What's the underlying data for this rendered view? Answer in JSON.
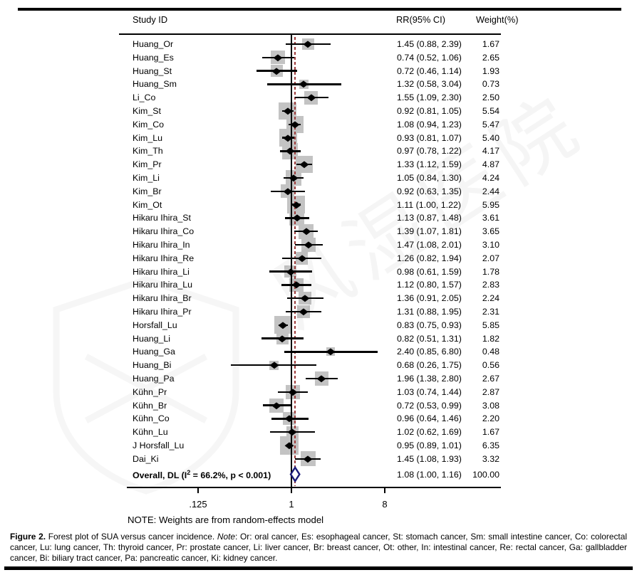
{
  "figure": {
    "header": {
      "study_id": "Study ID",
      "rr_ci": "RR(95% CI)",
      "weight": "Weight(%)"
    },
    "note": "NOTE: Weights are from random-effects model",
    "overall": {
      "label_prefix": "Overall, DL (I",
      "label_sup": "2",
      "label_suffix": " = 66.2%, p < 0.001)"
    },
    "caption": {
      "figure_label": "Figure 2.",
      "text1": " Forest plot of SUA versus cancer incidence. ",
      "note_label": "Note",
      "text2": ": Or: oral cancer, Es: esophageal cancer, St: stomach cancer, Sm: small intestine cancer, Co: colorectal cancer, Lu: lung cancer, Th: thyroid cancer, Pr: prostate cancer, Li: liver cancer, Br: breast cancer, Ot: other, In: intestinal cancer, Re: rectal cancer, Ga: gallbladder cancer, Bi: biliary tract cancer, Pa: pancreatic cancer, Ki: kidney cancer."
    },
    "watermark_text": "风湿医院",
    "colors": {
      "square": "#c3c3c3",
      "marker": "#000000",
      "ref_line": "#000000",
      "overall_dashed_line": "#9d3a3a",
      "diamond_outline": "#1b1b7a"
    }
  },
  "chart_data": {
    "type": "forest",
    "effect_measure": "RR",
    "x_axis": {
      "scale": "log",
      "ticks": [
        0.125,
        1,
        8
      ],
      "tick_labels": [
        ".125",
        "1",
        "8"
      ]
    },
    "ref_line": 1,
    "overall_dashed_line": 1.08,
    "studies": [
      {
        "id": "Huang_Or",
        "rr": 1.45,
        "lo": 0.88,
        "hi": 2.39,
        "weight": 1.67
      },
      {
        "id": "Huang_Es",
        "rr": 0.74,
        "lo": 0.52,
        "hi": 1.06,
        "weight": 2.65
      },
      {
        "id": "Huang_St",
        "rr": 0.72,
        "lo": 0.46,
        "hi": 1.14,
        "weight": 1.93
      },
      {
        "id": "Huang_Sm",
        "rr": 1.32,
        "lo": 0.58,
        "hi": 3.04,
        "weight": 0.73
      },
      {
        "id": "Li_Co",
        "rr": 1.55,
        "lo": 1.09,
        "hi": 2.3,
        "weight": 2.5
      },
      {
        "id": "Kim_St",
        "rr": 0.92,
        "lo": 0.81,
        "hi": 1.05,
        "weight": 5.54
      },
      {
        "id": "Kim_Co",
        "rr": 1.08,
        "lo": 0.94,
        "hi": 1.23,
        "weight": 5.47
      },
      {
        "id": "Kim_Lu",
        "rr": 0.93,
        "lo": 0.81,
        "hi": 1.07,
        "weight": 5.4
      },
      {
        "id": "Kim_Th",
        "rr": 0.97,
        "lo": 0.78,
        "hi": 1.22,
        "weight": 4.17
      },
      {
        "id": "Kim_Pr",
        "rr": 1.33,
        "lo": 1.12,
        "hi": 1.59,
        "weight": 4.87
      },
      {
        "id": "Kim_Li",
        "rr": 1.05,
        "lo": 0.84,
        "hi": 1.3,
        "weight": 4.24
      },
      {
        "id": "Kim_Br",
        "rr": 0.92,
        "lo": 0.63,
        "hi": 1.35,
        "weight": 2.44
      },
      {
        "id": "Kim_Ot",
        "rr": 1.11,
        "lo": 1.0,
        "hi": 1.22,
        "weight": 5.95
      },
      {
        "id": "Hikaru Ihira_St",
        "rr": 1.13,
        "lo": 0.87,
        "hi": 1.48,
        "weight": 3.61
      },
      {
        "id": "Hikaru Ihira_Co",
        "rr": 1.39,
        "lo": 1.07,
        "hi": 1.81,
        "weight": 3.65
      },
      {
        "id": "Hikaru Ihira_In",
        "rr": 1.47,
        "lo": 1.08,
        "hi": 2.01,
        "weight": 3.1
      },
      {
        "id": "Hikaru Ihira_Re",
        "rr": 1.26,
        "lo": 0.82,
        "hi": 1.94,
        "weight": 2.07
      },
      {
        "id": "Hikaru Ihira_Li",
        "rr": 0.98,
        "lo": 0.61,
        "hi": 1.59,
        "weight": 1.78
      },
      {
        "id": "Hikaru Ihira_Lu",
        "rr": 1.12,
        "lo": 0.8,
        "hi": 1.57,
        "weight": 2.83
      },
      {
        "id": "Hikaru Ihira_Br",
        "rr": 1.36,
        "lo": 0.91,
        "hi": 2.05,
        "weight": 2.24
      },
      {
        "id": "Hikaru Ihira_Pr",
        "rr": 1.31,
        "lo": 0.88,
        "hi": 1.95,
        "weight": 2.31
      },
      {
        "id": "Horsfall_Lu",
        "rr": 0.83,
        "lo": 0.75,
        "hi": 0.93,
        "weight": 5.85
      },
      {
        "id": "Huang_Li",
        "rr": 0.82,
        "lo": 0.51,
        "hi": 1.31,
        "weight": 1.82
      },
      {
        "id": "Huang_Ga",
        "rr": 2.4,
        "lo": 0.85,
        "hi": 6.8,
        "weight": 0.48
      },
      {
        "id": "Huang_Bi",
        "rr": 0.68,
        "lo": 0.26,
        "hi": 1.75,
        "weight": 0.56
      },
      {
        "id": "Huang_Pa",
        "rr": 1.96,
        "lo": 1.38,
        "hi": 2.8,
        "weight": 2.67
      },
      {
        "id": "Kühn_Pr",
        "rr": 1.03,
        "lo": 0.74,
        "hi": 1.44,
        "weight": 2.87
      },
      {
        "id": "Kühn_Br",
        "rr": 0.72,
        "lo": 0.53,
        "hi": 0.99,
        "weight": 3.08
      },
      {
        "id": "Kühn_Co",
        "rr": 0.96,
        "lo": 0.64,
        "hi": 1.46,
        "weight": 2.2
      },
      {
        "id": "Kühn_Lu",
        "rr": 1.02,
        "lo": 0.62,
        "hi": 1.69,
        "weight": 1.67
      },
      {
        "id": "J Horsfall_Lu",
        "rr": 0.95,
        "lo": 0.89,
        "hi": 1.01,
        "weight": 6.35
      },
      {
        "id": "Dai_Ki",
        "rr": 1.45,
        "lo": 1.08,
        "hi": 1.93,
        "weight": 3.32
      }
    ],
    "overall": {
      "rr": 1.08,
      "lo": 1.0,
      "hi": 1.16,
      "weight": 100.0
    }
  }
}
